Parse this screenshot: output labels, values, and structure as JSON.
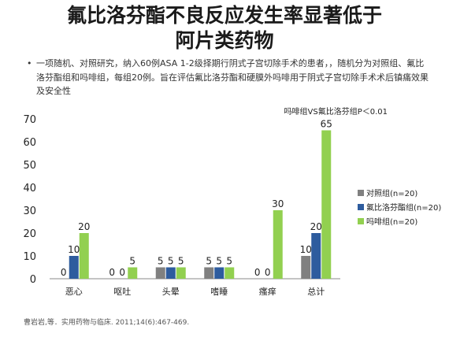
{
  "slide": {
    "title_line1": "氟比洛芬酯不良反应发生率显著低于",
    "title_line2": "阿片类药物",
    "bullet": "一项随机、对照研究，纳入60例ASA 1-2级择期行阴式子宫切除手术的患者，，随机分为对照组、氟比洛芬酯组和吗啡组，每组20例。旨在评估氟比洛芬酯和硬膜外吗啡用于阴式子宫切除手术术后镇痛效果及安全性",
    "bullet_symbol": "•",
    "citation": "曹岩岩,等．实用药物与临床. 2011;14(6):467-469."
  },
  "chart_data": {
    "type": "bar",
    "categories": [
      "恶心",
      "呕吐",
      "头晕",
      "嗜睡",
      "瘙痒",
      "总计"
    ],
    "series": [
      {
        "name": "对照组(n=20)",
        "color": "#808080",
        "values": [
          0,
          0,
          5,
          5,
          0,
          10
        ]
      },
      {
        "name": "氟比洛芬酯组(n=20)",
        "color": "#2e5c9e",
        "values": [
          10,
          0,
          5,
          5,
          0,
          20
        ]
      },
      {
        "name": "吗啡组(n=20)",
        "color": "#92d050",
        "values": [
          20,
          5,
          5,
          5,
          30,
          65
        ]
      }
    ],
    "ylim": [
      0,
      70
    ],
    "yticks": [
      0,
      10,
      20,
      30,
      40,
      50,
      60,
      70
    ],
    "ylabel": "",
    "annotation": "吗啡组VS氟比洛芬组P＜0.01",
    "legend_position": "right",
    "grid": false,
    "data_labels": true
  }
}
